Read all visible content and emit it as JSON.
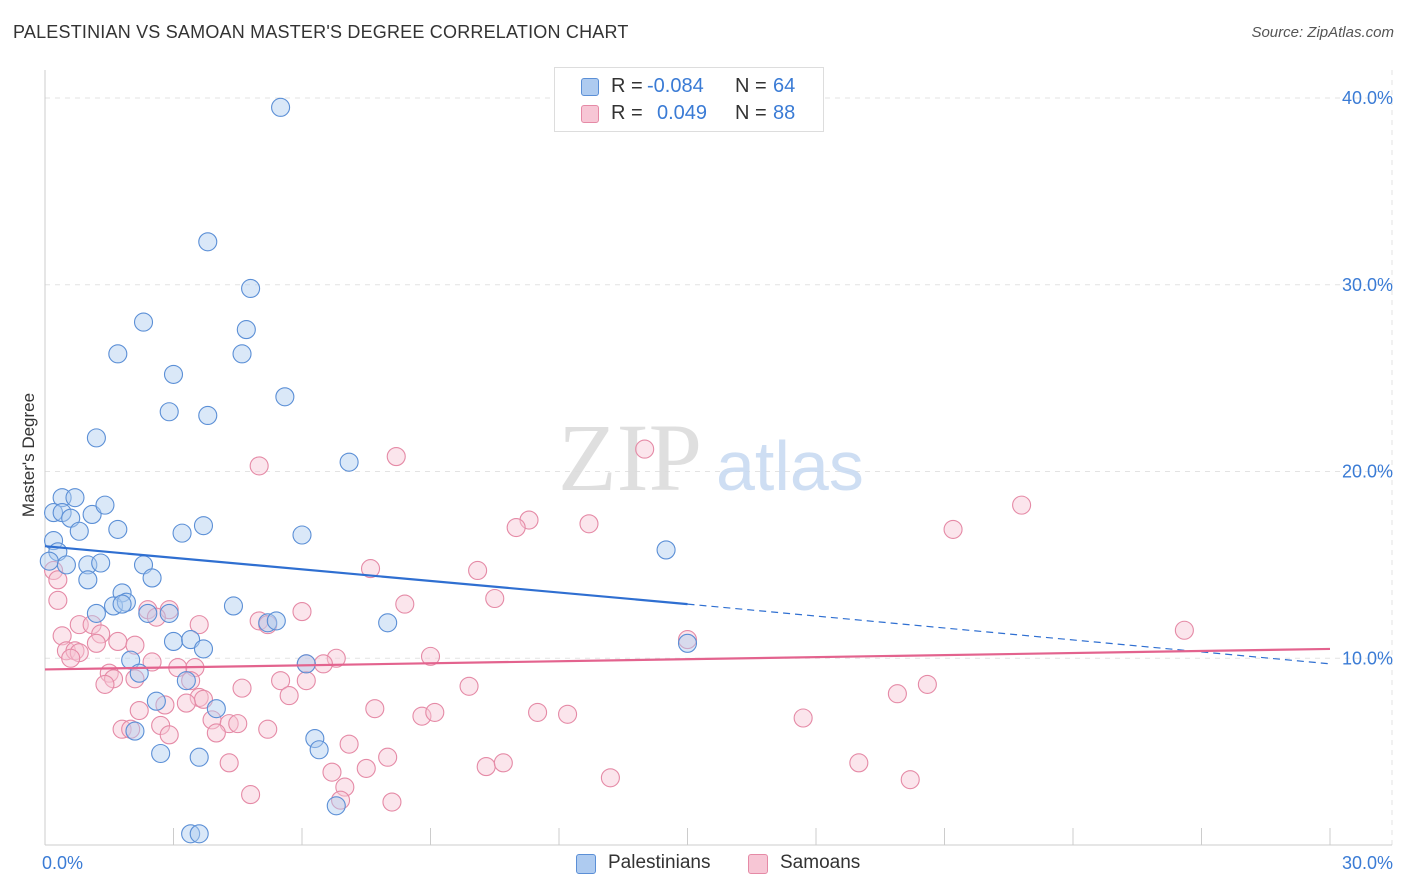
{
  "title": "PALESTINIAN VS SAMOAN MASTER'S DEGREE CORRELATION CHART",
  "source": "Source: ZipAtlas.com",
  "legend": {
    "r_label": "R =",
    "n_label": "N =",
    "palestinians": {
      "r": "-0.084",
      "n": "64"
    },
    "samoans": {
      "r": "0.049",
      "n": "88"
    }
  },
  "watermark": {
    "zip": "ZIP",
    "atlas": "atlas"
  },
  "colors": {
    "blue_fill": "#aecbf0",
    "blue_stroke": "#5b8fd6",
    "blue_line": "#2f6fd1",
    "pink_fill": "#f7c6d5",
    "pink_stroke": "#e58aa6",
    "pink_line": "#e3638e",
    "tick_text": "#3a7bd5"
  },
  "chart_data": {
    "type": "scatter",
    "title": "PALESTINIAN VS SAMOAN MASTER'S DEGREE CORRELATION CHART",
    "xlabel": "",
    "ylabel": "Master's Degree",
    "xlim": [
      0,
      30
    ],
    "ylim": [
      0,
      40
    ],
    "x_tick_labels": [
      "0.0%",
      "30.0%"
    ],
    "y_tick_values": [
      10,
      20,
      30,
      40
    ],
    "y_tick_labels": [
      "10.0%",
      "20.0%",
      "30.0%",
      "40.0%"
    ],
    "grid": true,
    "legend_position": "bottom",
    "series": [
      {
        "name": "Palestinians",
        "color": "#5b8fd6",
        "trend": {
          "x0": 0,
          "y0": 16.0,
          "x1": 15,
          "y1": 12.9,
          "dashed_to_x": 30,
          "dashed_to_y": 9.7
        },
        "points": [
          [
            5.5,
            39.5
          ],
          [
            3.8,
            32.3
          ],
          [
            4.8,
            29.8
          ],
          [
            2.3,
            28.0
          ],
          [
            4.7,
            27.6
          ],
          [
            1.7,
            26.3
          ],
          [
            4.6,
            26.3
          ],
          [
            3.0,
            25.2
          ],
          [
            5.6,
            24.0
          ],
          [
            2.9,
            23.2
          ],
          [
            3.8,
            23.0
          ],
          [
            1.2,
            21.8
          ],
          [
            7.1,
            20.5
          ],
          [
            0.4,
            18.6
          ],
          [
            0.7,
            18.6
          ],
          [
            0.2,
            17.8
          ],
          [
            0.4,
            17.8
          ],
          [
            1.1,
            17.7
          ],
          [
            0.6,
            17.5
          ],
          [
            1.4,
            18.2
          ],
          [
            3.7,
            17.1
          ],
          [
            3.2,
            16.7
          ],
          [
            0.8,
            16.8
          ],
          [
            1.7,
            16.9
          ],
          [
            6.0,
            16.6
          ],
          [
            0.2,
            16.3
          ],
          [
            0.3,
            15.7
          ],
          [
            0.1,
            15.2
          ],
          [
            0.5,
            15.0
          ],
          [
            1.0,
            15.0
          ],
          [
            1.3,
            15.1
          ],
          [
            2.3,
            15.0
          ],
          [
            14.5,
            15.8
          ],
          [
            1.0,
            14.2
          ],
          [
            2.5,
            14.3
          ],
          [
            1.8,
            13.5
          ],
          [
            1.6,
            12.8
          ],
          [
            1.9,
            13.0
          ],
          [
            1.8,
            12.9
          ],
          [
            4.4,
            12.8
          ],
          [
            1.2,
            12.4
          ],
          [
            2.4,
            12.4
          ],
          [
            2.9,
            12.4
          ],
          [
            5.2,
            11.9
          ],
          [
            5.4,
            12.0
          ],
          [
            8.0,
            11.9
          ],
          [
            3.0,
            10.9
          ],
          [
            3.4,
            11.0
          ],
          [
            3.7,
            10.5
          ],
          [
            15.0,
            10.8
          ],
          [
            2.0,
            9.9
          ],
          [
            6.1,
            9.7
          ],
          [
            2.2,
            9.2
          ],
          [
            3.3,
            8.8
          ],
          [
            2.6,
            7.7
          ],
          [
            4.0,
            7.3
          ],
          [
            6.3,
            5.7
          ],
          [
            2.1,
            6.1
          ],
          [
            6.4,
            5.1
          ],
          [
            2.7,
            4.9
          ],
          [
            3.6,
            4.7
          ],
          [
            6.8,
            2.1
          ],
          [
            3.4,
            0.6
          ],
          [
            3.6,
            0.6
          ]
        ]
      },
      {
        "name": "Samoans",
        "color": "#e58aa6",
        "trend": {
          "x0": 0,
          "y0": 9.4,
          "x1": 30,
          "y1": 10.5
        },
        "points": [
          [
            14.0,
            21.2
          ],
          [
            8.2,
            20.8
          ],
          [
            5.0,
            20.3
          ],
          [
            22.8,
            18.2
          ],
          [
            11.3,
            17.4
          ],
          [
            12.7,
            17.2
          ],
          [
            11.0,
            17.0
          ],
          [
            21.2,
            16.9
          ],
          [
            0.2,
            14.7
          ],
          [
            0.3,
            14.2
          ],
          [
            7.6,
            14.8
          ],
          [
            10.1,
            14.7
          ],
          [
            0.3,
            13.1
          ],
          [
            10.5,
            13.2
          ],
          [
            8.4,
            12.9
          ],
          [
            2.9,
            12.6
          ],
          [
            2.4,
            12.6
          ],
          [
            6.0,
            12.5
          ],
          [
            0.8,
            11.8
          ],
          [
            3.6,
            11.8
          ],
          [
            2.6,
            12.2
          ],
          [
            5.0,
            12.0
          ],
          [
            5.2,
            11.8
          ],
          [
            1.1,
            11.8
          ],
          [
            0.4,
            11.2
          ],
          [
            1.3,
            11.3
          ],
          [
            1.7,
            10.9
          ],
          [
            1.2,
            10.8
          ],
          [
            2.1,
            10.7
          ],
          [
            0.5,
            10.4
          ],
          [
            0.7,
            10.4
          ],
          [
            0.8,
            10.3
          ],
          [
            0.6,
            10.0
          ],
          [
            6.8,
            10.0
          ],
          [
            9.0,
            10.1
          ],
          [
            26.6,
            11.5
          ],
          [
            15.0,
            11.0
          ],
          [
            2.5,
            9.8
          ],
          [
            3.1,
            9.5
          ],
          [
            3.5,
            9.5
          ],
          [
            1.5,
            9.2
          ],
          [
            6.1,
            9.7
          ],
          [
            6.5,
            9.7
          ],
          [
            1.6,
            8.9
          ],
          [
            2.1,
            8.9
          ],
          [
            3.4,
            8.8
          ],
          [
            5.5,
            8.8
          ],
          [
            6.1,
            8.8
          ],
          [
            1.4,
            8.6
          ],
          [
            4.6,
            8.4
          ],
          [
            9.9,
            8.5
          ],
          [
            19.9,
            8.1
          ],
          [
            20.6,
            8.6
          ],
          [
            3.6,
            7.9
          ],
          [
            3.7,
            7.8
          ],
          [
            5.7,
            8.0
          ],
          [
            2.8,
            7.5
          ],
          [
            3.3,
            7.6
          ],
          [
            7.7,
            7.3
          ],
          [
            8.8,
            6.9
          ],
          [
            9.1,
            7.1
          ],
          [
            11.5,
            7.1
          ],
          [
            12.2,
            7.0
          ],
          [
            17.7,
            6.8
          ],
          [
            2.2,
            7.2
          ],
          [
            3.9,
            6.7
          ],
          [
            4.3,
            6.5
          ],
          [
            4.5,
            6.5
          ],
          [
            2.7,
            6.4
          ],
          [
            1.8,
            6.2
          ],
          [
            2.0,
            6.2
          ],
          [
            5.2,
            6.2
          ],
          [
            2.9,
            5.9
          ],
          [
            4.0,
            6.0
          ],
          [
            7.1,
            5.4
          ],
          [
            8.0,
            4.7
          ],
          [
            7.5,
            4.1
          ],
          [
            4.3,
            4.4
          ],
          [
            10.3,
            4.2
          ],
          [
            10.7,
            4.4
          ],
          [
            19.0,
            4.4
          ],
          [
            6.7,
            3.9
          ],
          [
            13.2,
            3.6
          ],
          [
            20.2,
            3.5
          ],
          [
            7.0,
            3.1
          ],
          [
            4.8,
            2.7
          ],
          [
            6.9,
            2.4
          ],
          [
            8.1,
            2.3
          ]
        ]
      }
    ]
  },
  "bottom_legend": {
    "palestinians": "Palestinians",
    "samoans": "Samoans"
  }
}
